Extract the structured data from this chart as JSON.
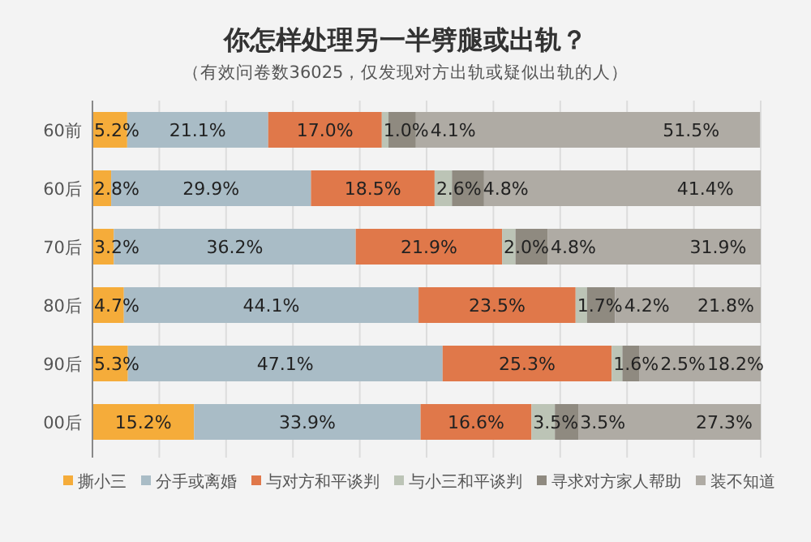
{
  "chart_data": {
    "type": "bar",
    "orientation": "horizontal",
    "stacked": true,
    "title": "你怎样处理另一半劈腿或出轨？",
    "subtitle": "（有效问卷数36025，仅发现对方出轨或疑似出轨的人）",
    "categories": [
      "60前",
      "60后",
      "70后",
      "80后",
      "90后",
      "00后"
    ],
    "xlim": [
      0,
      100
    ],
    "xticks": [
      {
        "value": 0,
        "label": null
      },
      {
        "value": 10,
        "label": null
      },
      {
        "value": 20,
        "label": null
      },
      {
        "value": 30,
        "label": null
      },
      {
        "value": 40,
        "label": null
      },
      {
        "value": 50,
        "label": null
      },
      {
        "value": 60,
        "label": null
      },
      {
        "value": 70,
        "label": null
      },
      {
        "value": 80,
        "label": null
      },
      {
        "value": 90,
        "label": null
      },
      {
        "value": 100,
        "label": null
      }
    ],
    "grid": "x",
    "tick_labels": "y",
    "legend": "bottom",
    "series": [
      {
        "name": "撕小三",
        "color": "#f5ac3a",
        "values": [
          5.2,
          2.8,
          3.2,
          4.7,
          5.3,
          15.2
        ],
        "value_labels": [
          "5.2%",
          "2.8%",
          "3.2%",
          "4.7%",
          "5.3%",
          "15.2%"
        ]
      },
      {
        "name": "分手或离婚",
        "color": "#a9bcc6",
        "values": [
          21.1,
          29.9,
          36.2,
          44.1,
          47.1,
          33.9
        ],
        "value_labels": [
          "21.1%",
          "29.9%",
          "36.2%",
          "44.1%",
          "47.1%",
          "33.9%"
        ]
      },
      {
        "name": "与对方和平谈判",
        "color": "#e0784a",
        "values": [
          17.0,
          18.5,
          21.9,
          23.5,
          25.3,
          16.6
        ],
        "value_labels": [
          "17.0%",
          "18.5%",
          "21.9%",
          "23.5%",
          "25.3%",
          "16.6%"
        ]
      },
      {
        "name": "与小三和平谈判",
        "color": "#bcc4b6",
        "values": [
          1.0,
          2.6,
          2.0,
          1.7,
          1.6,
          3.5
        ],
        "value_labels": [
          "1.0%",
          "2.6%",
          "2.0%",
          "1.7%",
          "1.6%",
          "3.5%"
        ]
      },
      {
        "name": "寻求对方家人帮助",
        "color": "#8f8a80",
        "values": [
          4.1,
          4.8,
          4.8,
          4.2,
          2.5,
          3.5
        ],
        "value_labels": [
          "4.1%",
          "4.8%",
          "4.8%",
          "4.2%",
          "2.5%",
          "3.5%"
        ]
      },
      {
        "name": "装不知道",
        "color": "#afaba4",
        "values": [
          51.5,
          41.4,
          31.9,
          21.8,
          18.2,
          27.3
        ],
        "value_labels": [
          "51.5%",
          "41.4%",
          "31.9%",
          "21.8%",
          "18.2%",
          "27.3%"
        ]
      }
    ]
  }
}
